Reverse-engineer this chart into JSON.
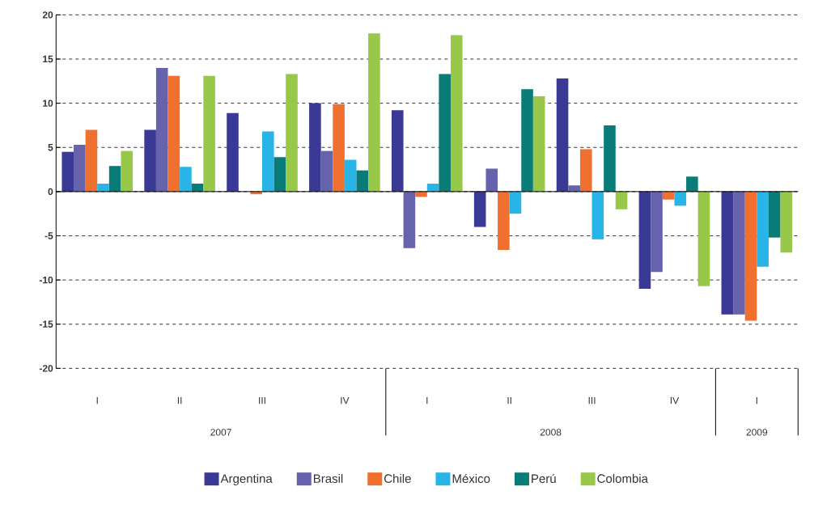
{
  "chart_data": {
    "type": "bar",
    "categories": [
      "I",
      "II",
      "III",
      "IV",
      "I",
      "II",
      "III",
      "IV",
      "I"
    ],
    "series": [
      {
        "name": "Argentina",
        "color": "#3a3a96",
        "values": [
          4.5,
          7.0,
          8.9,
          10.0,
          9.2,
          -4.0,
          12.8,
          -11.0,
          -13.9
        ]
      },
      {
        "name": "Brasil",
        "color": "#6662ac",
        "values": [
          5.3,
          14.0,
          null,
          4.6,
          -6.4,
          2.6,
          0.7,
          -9.1,
          -13.9
        ]
      },
      {
        "name": "Chile",
        "color": "#f07030",
        "values": [
          7.0,
          13.1,
          -0.3,
          9.9,
          -0.6,
          -6.6,
          4.8,
          -0.9,
          -14.6
        ]
      },
      {
        "name": "México",
        "color": "#28b4e6",
        "values": [
          0.9,
          2.8,
          6.8,
          3.6,
          0.9,
          -2.5,
          -5.4,
          -1.6,
          -8.5
        ]
      },
      {
        "name": "Perú",
        "color": "#0a7c78",
        "values": [
          2.9,
          0.9,
          3.9,
          2.4,
          13.3,
          11.6,
          7.5,
          1.7,
          -5.2
        ]
      },
      {
        "name": "Colombia",
        "color": "#98c84a",
        "values": [
          4.6,
          13.1,
          13.3,
          17.9,
          17.7,
          10.8,
          -2.0,
          -10.7,
          -6.9
        ]
      }
    ],
    "annotations": [
      "2007",
      "2008",
      "2009"
    ],
    "ylim": [
      -20,
      20
    ],
    "yticks": [
      -20,
      -15,
      -10,
      -5,
      0,
      5,
      10,
      15,
      20
    ],
    "grid": "y",
    "legend": "bottom"
  }
}
